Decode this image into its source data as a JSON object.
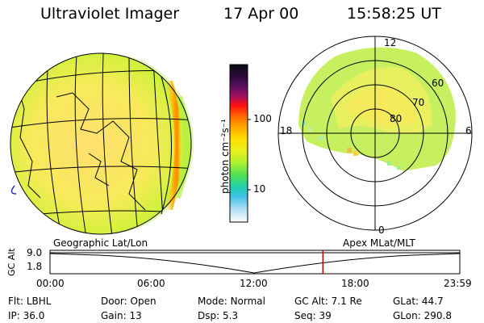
{
  "header": {
    "instrument": "Ultraviolet Imager",
    "date": "17 Apr 00",
    "time": "15:58:25 UT"
  },
  "colorbar": {
    "unit_label": "photon cm⁻²s⁻¹",
    "tick_labels": [
      "100",
      "10"
    ],
    "colors": [
      "#0a0a12",
      "#2a0a3a",
      "#5a1060",
      "#a01060",
      "#ff1010",
      "#ff6a00",
      "#ffaa00",
      "#ffdd00",
      "#e8f020",
      "#b0f030",
      "#50e050",
      "#20d0b0",
      "#40c0e8",
      "#9ad8f0",
      "#d8eef8",
      "#ffffff"
    ]
  },
  "polar_plot": {
    "mlt_labels": [
      "12",
      "18",
      "6",
      "0"
    ],
    "mlat_labels": [
      "60",
      "70",
      "80"
    ]
  },
  "timeline": {
    "left_title": "Geographic Lat/Lon",
    "right_title": "Apex MLat/MLT",
    "y_axis_label": "GC Alt",
    "y_ticks": [
      "9.0",
      "1.8"
    ],
    "x_ticks": [
      "00:00",
      "06:00",
      "12:00",
      "18:00",
      "23:59"
    ],
    "current_time_fraction": 0.666,
    "marker_color": "#c00000"
  },
  "footer": {
    "row1": [
      {
        "label": "Flt:",
        "value": "LBHL"
      },
      {
        "label": "Door:",
        "value": "Open"
      },
      {
        "label": "Mode:",
        "value": "Normal"
      },
      {
        "label": "GC Alt:",
        "value": "7.1 Re"
      },
      {
        "label": "GLat:",
        "value": "44.7"
      }
    ],
    "row2": [
      {
        "label": "IP:",
        "value": "36.0"
      },
      {
        "label": "Gain:",
        "value": "13"
      },
      {
        "label": "Dsp:",
        "value": "5.3"
      },
      {
        "label": "Seq:",
        "value": "39"
      },
      {
        "label": "GLon:",
        "value": "290.8"
      }
    ]
  }
}
